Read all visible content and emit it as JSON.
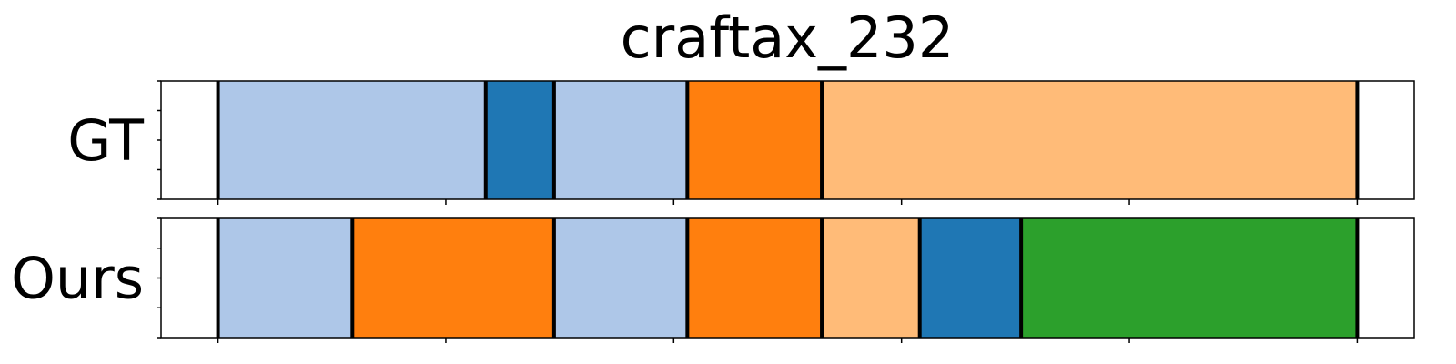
{
  "chart_data": {
    "type": "segmentation",
    "title": "craftax_232",
    "x_range": [
      0,
      110
    ],
    "x_ticks": [
      5,
      25,
      45,
      65,
      85,
      105
    ],
    "rows": [
      {
        "label": "GT",
        "segments": [
          {
            "start": 5.0,
            "end": 28.5,
            "color": "#aec7e8"
          },
          {
            "start": 28.5,
            "end": 34.5,
            "color": "#1f77b4"
          },
          {
            "start": 34.5,
            "end": 46.2,
            "color": "#aec7e8"
          },
          {
            "start": 46.2,
            "end": 58.0,
            "color": "#ff7f0e"
          },
          {
            "start": 58.0,
            "end": 105.0,
            "color": "#ffbb78"
          }
        ]
      },
      {
        "label": "Ours",
        "segments": [
          {
            "start": 5.0,
            "end": 16.8,
            "color": "#aec7e8"
          },
          {
            "start": 16.8,
            "end": 34.5,
            "color": "#ff7f0e"
          },
          {
            "start": 34.5,
            "end": 46.2,
            "color": "#aec7e8"
          },
          {
            "start": 46.2,
            "end": 58.0,
            "color": "#ff7f0e"
          },
          {
            "start": 58.0,
            "end": 66.6,
            "color": "#ffbb78"
          },
          {
            "start": 66.6,
            "end": 75.5,
            "color": "#1f77b4"
          },
          {
            "start": 75.5,
            "end": 105.0,
            "color": "#2ca02c"
          }
        ]
      }
    ]
  }
}
